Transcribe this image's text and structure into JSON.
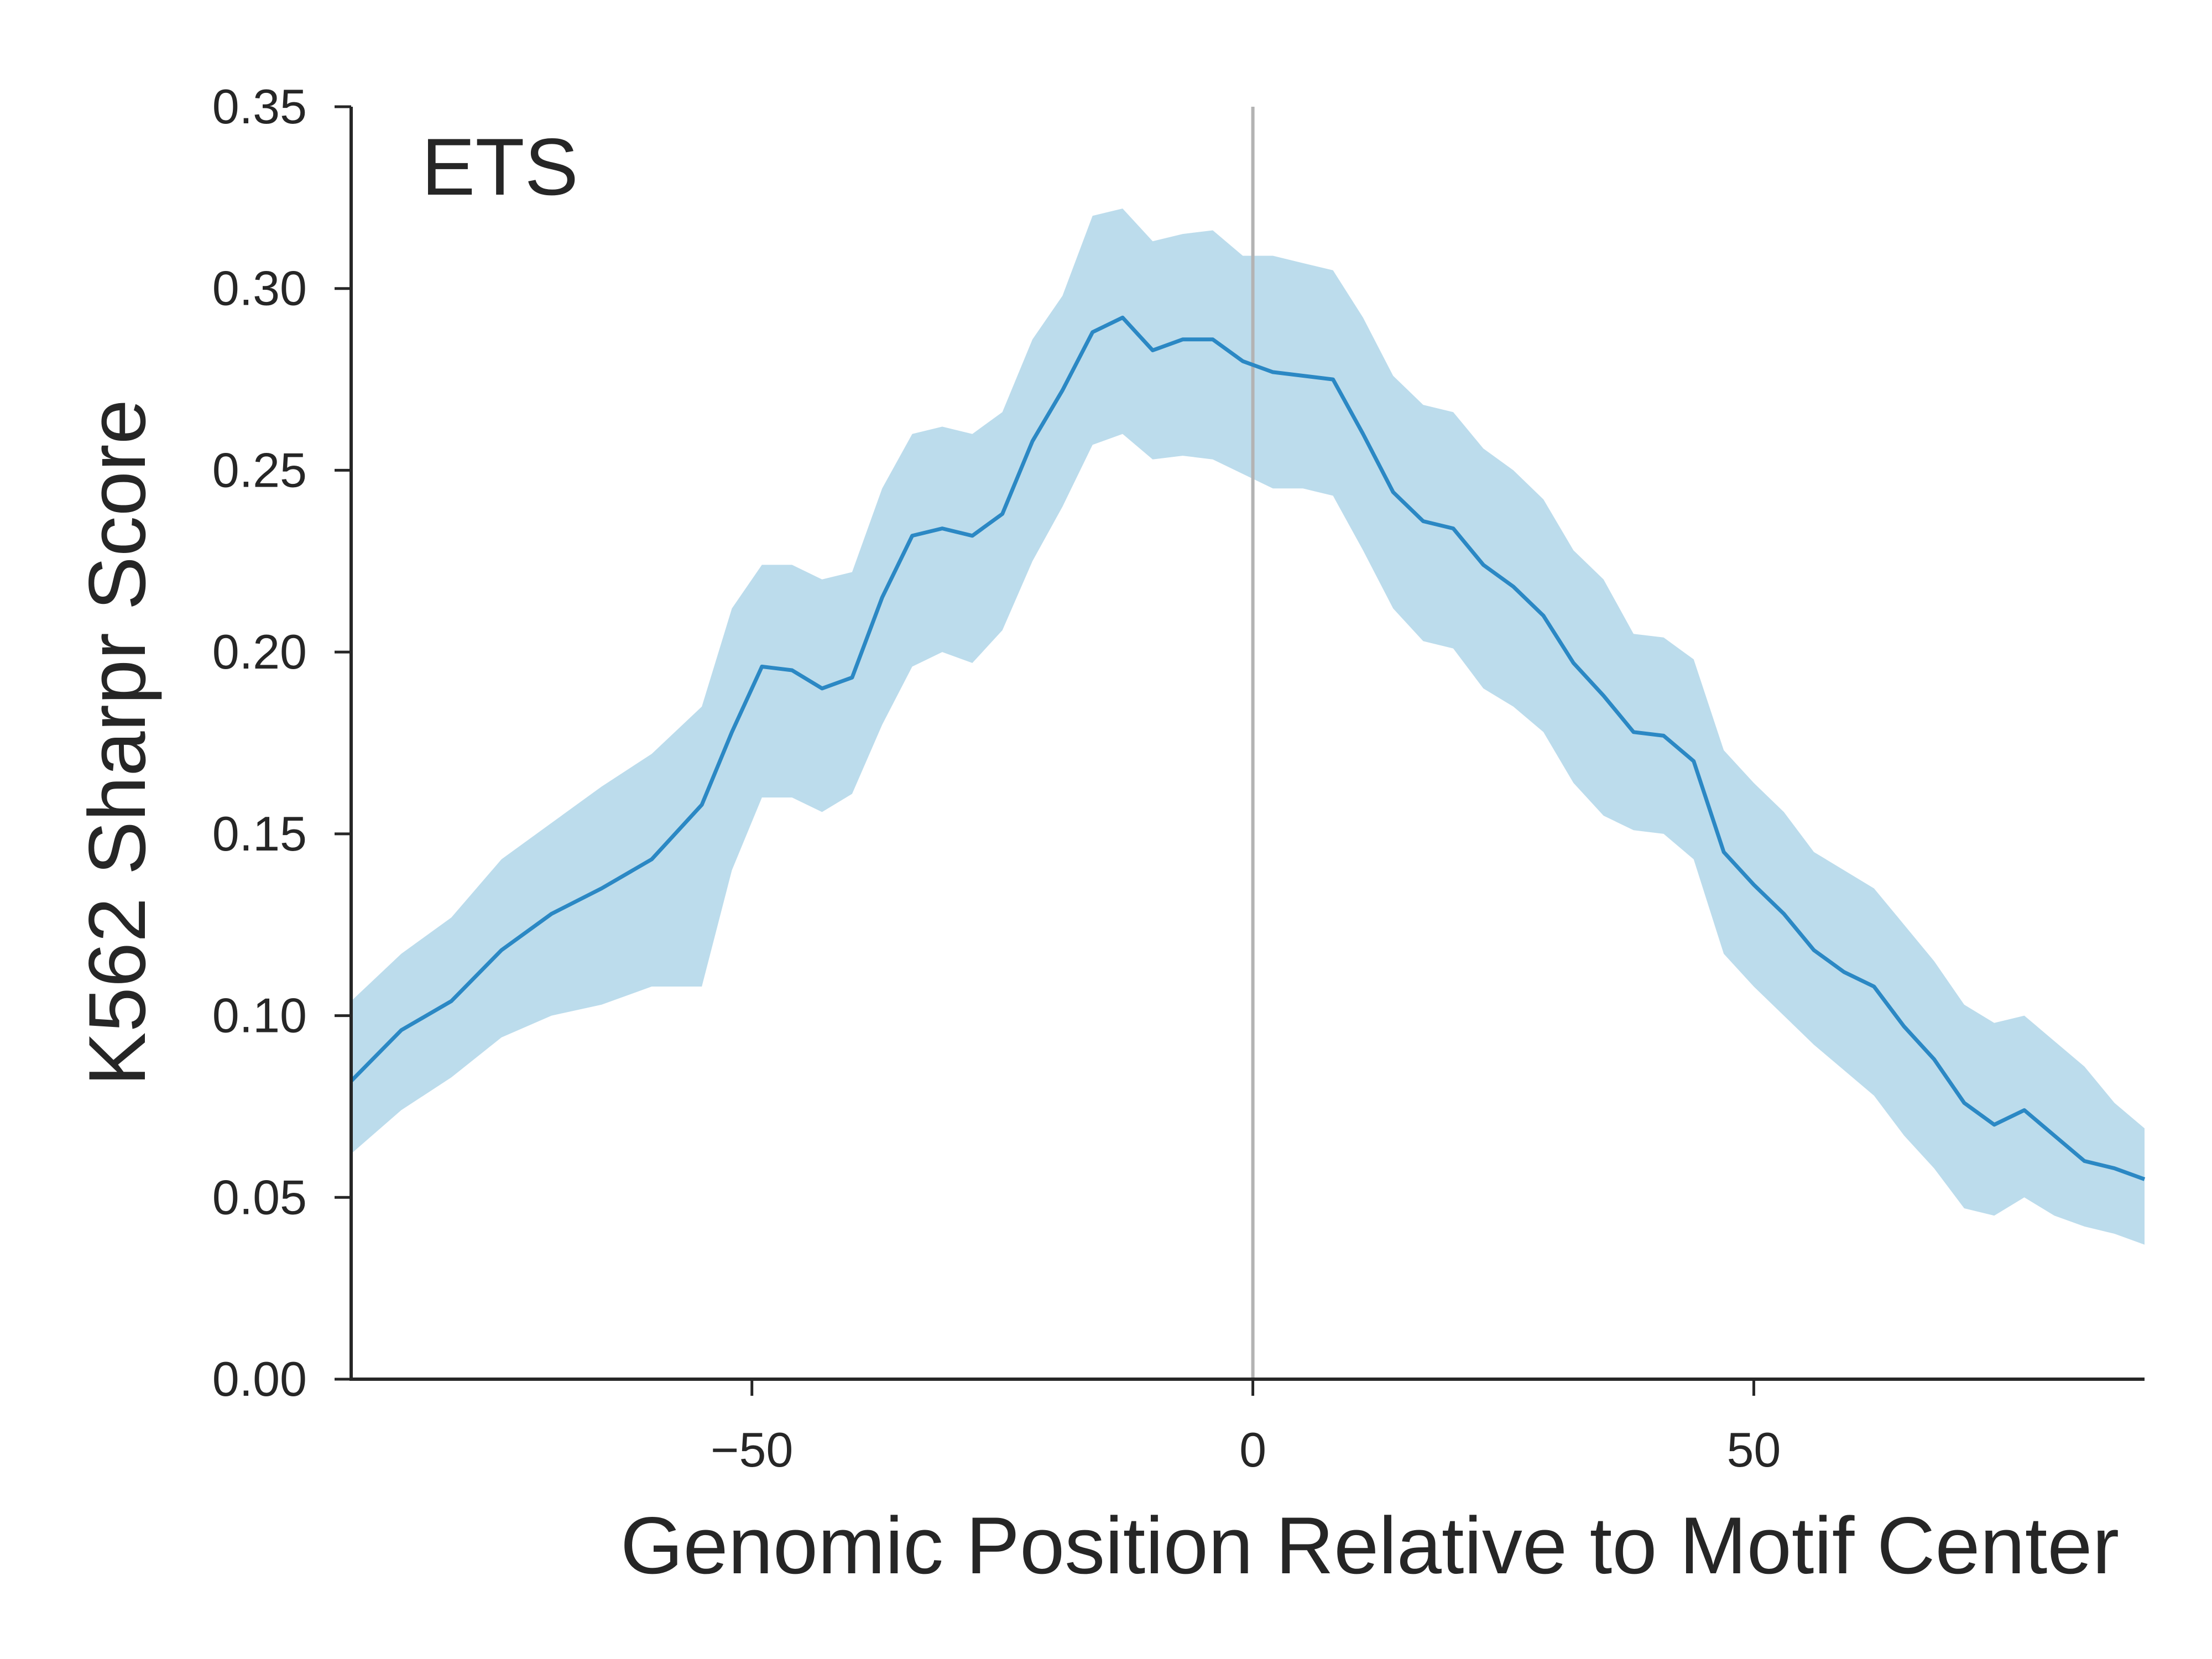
{
  "chart_data": {
    "type": "line",
    "title": "",
    "annotation": "ETS",
    "xlabel": "Genomic Position Relative to Motif Center",
    "ylabel": "K562 Sharpr Score",
    "xlim": [
      -90,
      89
    ],
    "ylim": [
      0.0,
      0.35
    ],
    "x_ticks": [
      -50,
      0,
      50
    ],
    "x_tick_labels": [
      "−50",
      "0",
      "50"
    ],
    "y_ticks": [
      0.0,
      0.05,
      0.1,
      0.15,
      0.2,
      0.25,
      0.3,
      0.35
    ],
    "y_tick_labels": [
      "0.00",
      "0.05",
      "0.10",
      "0.15",
      "0.20",
      "0.25",
      "0.30",
      "0.35"
    ],
    "grid": false,
    "reference_line": {
      "x": 0,
      "color": "#b3b3b3"
    },
    "colors": {
      "line": "#2b88c4",
      "band": "#bcdcec",
      "axis": "#262626"
    },
    "series": [
      {
        "x": [
          -90,
          -85,
          -80,
          -75,
          -70,
          -65,
          -60,
          -55,
          -52,
          -49,
          -46,
          -43,
          -40,
          -37,
          -34,
          -31,
          -28,
          -25,
          -22,
          -19,
          -16,
          -13,
          -10,
          -7,
          -4,
          -1,
          2,
          5,
          8,
          11,
          14,
          17,
          20,
          23,
          26,
          29,
          32,
          35,
          38,
          41,
          44,
          47,
          50,
          53,
          56,
          59,
          62,
          65,
          68,
          71,
          74,
          77,
          80,
          83,
          86,
          89
        ],
        "values": [
          0.082,
          0.096,
          0.104,
          0.118,
          0.128,
          0.135,
          0.143,
          0.158,
          0.178,
          0.196,
          0.195,
          0.19,
          0.193,
          0.215,
          0.232,
          0.234,
          0.232,
          0.238,
          0.258,
          0.272,
          0.288,
          0.292,
          0.283,
          0.286,
          0.286,
          0.28,
          0.277,
          0.276,
          0.275,
          0.26,
          0.244,
          0.236,
          0.234,
          0.224,
          0.218,
          0.21,
          0.197,
          0.188,
          0.178,
          0.177,
          0.17,
          0.145,
          0.136,
          0.128,
          0.118,
          0.112,
          0.108,
          0.097,
          0.088,
          0.076,
          0.07,
          0.074,
          0.067,
          0.06,
          0.058,
          0.055
        ],
        "lower": [
          0.062,
          0.074,
          0.083,
          0.094,
          0.1,
          0.103,
          0.108,
          0.108,
          0.14,
          0.16,
          0.16,
          0.156,
          0.161,
          0.18,
          0.196,
          0.2,
          0.197,
          0.206,
          0.225,
          0.24,
          0.257,
          0.26,
          0.253,
          0.254,
          0.253,
          0.249,
          0.245,
          0.245,
          0.243,
          0.228,
          0.212,
          0.203,
          0.201,
          0.19,
          0.185,
          0.178,
          0.164,
          0.155,
          0.151,
          0.15,
          0.143,
          0.117,
          0.108,
          0.1,
          0.092,
          0.085,
          0.078,
          0.067,
          0.058,
          0.047,
          0.045,
          0.05,
          0.045,
          0.042,
          0.04,
          0.037
        ],
        "upper": [
          0.104,
          0.117,
          0.127,
          0.143,
          0.153,
          0.163,
          0.172,
          0.185,
          0.212,
          0.224,
          0.224,
          0.22,
          0.222,
          0.245,
          0.26,
          0.262,
          0.26,
          0.266,
          0.286,
          0.298,
          0.32,
          0.322,
          0.313,
          0.315,
          0.316,
          0.309,
          0.309,
          0.307,
          0.305,
          0.292,
          0.276,
          0.268,
          0.266,
          0.256,
          0.25,
          0.242,
          0.228,
          0.22,
          0.205,
          0.204,
          0.198,
          0.173,
          0.164,
          0.156,
          0.145,
          0.14,
          0.135,
          0.125,
          0.115,
          0.103,
          0.098,
          0.1,
          0.093,
          0.086,
          0.076,
          0.069
        ]
      }
    ]
  }
}
